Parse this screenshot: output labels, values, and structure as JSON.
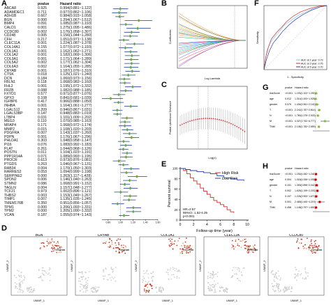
{
  "panels": {
    "A": {
      "label": "A",
      "headers": [
        "pvalue",
        "Hazard ratio"
      ],
      "rows": [
        {
          "gene": "ABCA8",
          "p": "0.925",
          "hr": "0.994(0.881~1.122)"
        },
        {
          "gene": "ADAMDEC1",
          "p": "0.711",
          "hr": "0.977(0.862~1.106)"
        },
        {
          "gene": "ADH1B",
          "p": "0.667",
          "hr": "0.984(0.915~1.058)"
        },
        {
          "gene": "BGN",
          "p": "0.000",
          "hr": "1.294(1.067~1.512)"
        },
        {
          "gene": "BMP4",
          "p": "0.091",
          "hr": "1.085(0.987~1.193)"
        },
        {
          "gene": "CALD1",
          "p": "0.001",
          "hr": "1.275(1.095~1.486)"
        },
        {
          "gene": "CCDC80",
          "p": "0.002",
          "hr": "1.176(1.058~1.307)"
        },
        {
          "gene": "CD248",
          "p": "0.005",
          "hr": "1.156(1.044~1.280)"
        },
        {
          "gene": "CFH",
          "p": "0.217",
          "hr": "1.051(0.971~1.138)"
        },
        {
          "gene": "CLEC11A",
          "p": "0.001",
          "hr": "1.224(1.087~1.378)"
        },
        {
          "gene": "COL14A1",
          "p": "0.155",
          "hr": "1.077(0.972~1.193)"
        },
        {
          "gene": "COL1A1",
          "p": "0.001",
          "hr": "1.162(1.062~1.271)"
        },
        {
          "gene": "COL1A2",
          "p": "0.001",
          "hr": "1.182(1.069~1.306)"
        },
        {
          "gene": "COL3A1",
          "p": "0.001",
          "hr": "1.171(1.064~1.289)"
        },
        {
          "gene": "COL5A2",
          "p": "0.002",
          "hr": "1.177(1.062~1.304)"
        },
        {
          "gene": "COL6A3",
          "p": "0.002",
          "hr": "1.164(1.055~1.285)"
        },
        {
          "gene": "CRYAB",
          "p": "0.001",
          "hr": "1.187(1.076~1.310)"
        },
        {
          "gene": "CTSK",
          "p": "0.018",
          "hr": "1.125(1.021~1.240)"
        },
        {
          "gene": "DCN",
          "p": "0.184",
          "hr": "1.060(0.973~1.156)"
        },
        {
          "gene": "FBLN1",
          "p": "0.118",
          "hr": "1.068(0.983~1.160)"
        },
        {
          "gene": "FHL2",
          "p": "0.001",
          "hr": "1.195(1.072~1.332)"
        },
        {
          "gene": "FRZB",
          "p": "0.088",
          "hr": "1.082(0.988~1.185)"
        },
        {
          "gene": "FXYD1",
          "p": "0.577",
          "hr": "0.971(0.877~1.076)"
        },
        {
          "gene": "GPX3",
          "p": "0.108",
          "hr": "0.841(0.681~1.039)"
        },
        {
          "gene": "IGFBP6",
          "p": "0.417",
          "hr": "0.966(0.888~1.050)"
        },
        {
          "gene": "INHBA",
          "p": "0.001",
          "hr": "1.164(1.061~1.277)"
        },
        {
          "gene": "LGALS12",
          "p": "0.209",
          "hr": "0.946(0.867~1.031)"
        },
        {
          "gene": "LGALS3BP",
          "p": "0.147",
          "hr": "0.948(0.883~1.019)"
        },
        {
          "gene": "LTBP4",
          "p": "0.031",
          "hr": "1.101(1.009~1.202)"
        },
        {
          "gene": "MEG3",
          "p": "0.110",
          "hr": "1.070(0.985~1.163)"
        },
        {
          "gene": "MFAP4",
          "p": "0.171",
          "hr": "1.068(0.972~1.174)"
        },
        {
          "gene": "MMP2",
          "p": "0.015",
          "hr": "1.108(1.020~1.203)"
        },
        {
          "gene": "PDGFRA",
          "p": "0.007",
          "hr": "1.143(1.037~1.260)"
        },
        {
          "gene": "PDPN",
          "p": "0.001",
          "hr": "1.176(1.067~1.296)"
        },
        {
          "gene": "PHLDA1",
          "p": "0.303",
          "hr": "1.048(0.958~1.147)"
        },
        {
          "gene": "PI16",
          "p": "0.076",
          "hr": "1.083(0.992~1.183)"
        },
        {
          "gene": "PLAT",
          "p": "0.261",
          "hr": "1.044(0.968~1.126)"
        },
        {
          "gene": "POSTN",
          "p": "0.011",
          "hr": "1.104(1.023~1.191)"
        },
        {
          "gene": "PPP1R14A",
          "p": "0.071",
          "hr": "1.089(0.993~1.195)"
        },
        {
          "gene": "PROCR",
          "p": "0.613",
          "hr": "0.973(0.876~1.081)"
        },
        {
          "gene": "PTGDS",
          "p": "0.263",
          "hr": "1.046(0.967~1.131)"
        },
        {
          "gene": "RAB34",
          "p": "0.004",
          "hr": "1.170(1.050~1.303)"
        },
        {
          "gene": "RARRES2",
          "p": "0.053",
          "hr": "1.094(0.999~1.198)"
        },
        {
          "gene": "SERPINE2",
          "p": "0.000",
          "hr": "1.263(1.117~1.428)"
        },
        {
          "gene": "SPON2",
          "p": "0.006",
          "hr": "1.146(1.040~1.263)"
        },
        {
          "gene": "STMN2",
          "p": "0.086",
          "hr": "1.068(0.991~1.152)"
        },
        {
          "gene": "TAGLN",
          "p": "0.004",
          "hr": "1.157(1.048~1.277)"
        },
        {
          "gene": "TCF21",
          "p": "0.973",
          "hr": "1.002(0.896~1.121)"
        },
        {
          "gene": "THBS2",
          "p": "0.003",
          "hr": "1.153(1.049~1.267)"
        },
        {
          "gene": "TIMP1",
          "p": "0.007",
          "hr": "1.135(1.035~1.245)"
        },
        {
          "gene": "TMEM176B",
          "p": "0.350",
          "hr": "0.951(0.856~1.057)"
        },
        {
          "gene": "TPM1",
          "p": "0.000",
          "hr": "1.206(1.093~1.331)"
        },
        {
          "gene": "TPM2",
          "p": "0.000",
          "hr": "1.205(1.090~1.332)"
        },
        {
          "gene": "VCAN",
          "p": "0.187",
          "hr": "1.055(0.974~1.143)"
        }
      ],
      "axis_ticks": [
        "0.80",
        "1.00",
        "1.20",
        "1.40",
        "1.60"
      ],
      "axis_label": "Hazard ratio"
    },
    "B": {
      "label": "B",
      "xlabel": "Log Lambda",
      "ylabel": "Coefficients"
    },
    "C": {
      "label": "C",
      "xlabel": "Log(λ)",
      "ylabel": "Partial Likelihood Deviance"
    },
    "E": {
      "label": "E",
      "ylabel": "Percent survival",
      "xlabel": "Follow-up time (year)",
      "legend": [
        "High Risk",
        "Low Risk"
      ],
      "stats": [
        "HR=2.57",
        "95%CI: 1.52-4.35",
        "p<0.001"
      ],
      "xticks": [
        "0",
        "2",
        "4",
        "6",
        "8",
        "10"
      ],
      "yticks": [
        "0",
        "20",
        "40",
        "60",
        "80",
        "100"
      ]
    },
    "F": {
      "label": "F",
      "ylabel": "Sensitivity",
      "xlabel": "1 - Specificity",
      "legend": [
        "AUC at 1 year: 0.73",
        "AUC at 3 year: 0.75",
        "AUC at 5 year: 0.70"
      ]
    },
    "G": {
      "label": "G",
      "headers": [
        "pvalue",
        "Hazard ratio"
      ],
      "rows": [
        {
          "name": "riskScore",
          "p": "<0.001",
          "hr": "1.193(1.102~1.290)"
        },
        {
          "name": "age",
          "p": "0.012",
          "hr": "1.014(1.003~1.025)"
        },
        {
          "name": "gender",
          "p": "0.079",
          "hr": "1.434(0.961~2.140)"
        },
        {
          "name": "T",
          "p": "<0.001",
          "hr": "2.242(1.787~2.814)"
        },
        {
          "name": "N",
          "p": "<0.001",
          "hr": "1.780(1.376~2.303)"
        },
        {
          "name": "M",
          "p": "<0.001",
          "hr": "4.327(2.762~6.777)"
        },
        {
          "name": "TNM",
          "p": "<0.001",
          "hr": "2.136(1.782~2.559)"
        }
      ]
    },
    "H": {
      "label": "H",
      "headers": [
        "pvalue",
        "Hazard ratio"
      ],
      "rows": [
        {
          "name": "riskScore",
          "p": "<0.001",
          "hr": "1.150(1.062~1.246)"
        },
        {
          "name": "age",
          "p": "0.004",
          "hr": "1.018(1.006~1.030)"
        },
        {
          "name": "gender",
          "p": "0.151",
          "hr": "1.353(0.896~2.042)"
        },
        {
          "name": "T",
          "p": "0.002",
          "hr": "1.625(1.199~2.203)"
        },
        {
          "name": "N",
          "p": "0.197",
          "hr": "1.226(0.900~1.670)"
        },
        {
          "name": "M",
          "p": "0.001",
          "hr": "2.465(1.440~4.219)"
        },
        {
          "name": "TNM",
          "p": "0.458",
          "hr": "1.148(0.797~1.653)"
        }
      ]
    },
    "D": {
      "label": "D",
      "genes": [
        "BGN",
        "CRYAB",
        "COL1A1",
        "CLEC11A",
        "CCDC80"
      ],
      "annotation": "Fibroblast",
      "xlabel": "UMAP_1",
      "ylabel": "UMAP_2"
    }
  },
  "colors": {
    "forest_a": "#6aa84f",
    "forest_g": "#7fbf3f",
    "forest_h": "#cc0000",
    "high_risk": "#d62728",
    "low_risk": "#1f3fa6",
    "cv_points": "#e03030",
    "roc_1": "#7ec8e3",
    "roc_3": "#d62728",
    "roc_5": "#1f3fa6",
    "umap_high": "#c0392b",
    "umap_low": "#cfcfcf"
  }
}
